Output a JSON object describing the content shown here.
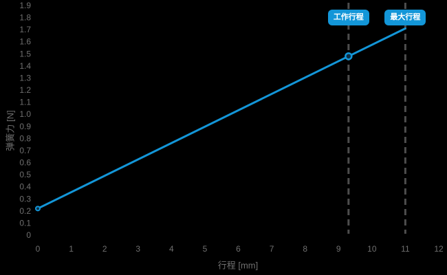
{
  "colors": {
    "background": "#000000",
    "accent_blue": "#1396d8",
    "tick_label_gray": "#6f6f6f",
    "dash_line_gray": "#4d4d4d",
    "badge_text": "#ffffff",
    "marker_fill": "#0e2f45"
  },
  "chart_data": {
    "type": "line",
    "title": "",
    "xlabel": "行程 [mm]",
    "ylabel": "弹簧力 [N]",
    "xlim": [
      0,
      12
    ],
    "ylim": [
      0,
      1.9
    ],
    "grid": false,
    "legend": false,
    "x_tick_values": [
      0,
      1,
      2,
      3,
      4,
      5,
      6,
      7,
      8,
      9,
      10,
      11,
      12
    ],
    "x_tick_labels": [
      "0",
      "1",
      "2",
      "3",
      "4",
      "5",
      "6",
      "7",
      "8",
      "9",
      "10",
      "11",
      "12"
    ],
    "y_tick_values": [
      0,
      0.1,
      0.2,
      0.3,
      0.4,
      0.5,
      0.6,
      0.7,
      0.8,
      0.9,
      1.0,
      1.1,
      1.2,
      1.3,
      1.4,
      1.5,
      1.6,
      1.7,
      1.8,
      1.9
    ],
    "y_tick_labels": [
      "0",
      "0.1",
      "0.2",
      "0.3",
      "0.4",
      "0.5",
      "0.6",
      "0.7",
      "0.8",
      "0.9",
      "1.0",
      "1.1",
      "1.2",
      "1.3",
      "1.4",
      "1.5",
      "1.6",
      "1.7",
      "1.8",
      "1.9"
    ],
    "series": [
      {
        "points": [
          [
            0,
            0.22
          ],
          [
            9.3,
            1.48
          ],
          [
            11,
            1.71
          ]
        ]
      }
    ],
    "highlight_point": [
      9.3,
      1.48
    ],
    "start_point": [
      0,
      0.22
    ],
    "reference_lines": [
      {
        "x": 9.3,
        "label": "工作行程"
      },
      {
        "x": 11.0,
        "label": "最大行程"
      }
    ]
  }
}
